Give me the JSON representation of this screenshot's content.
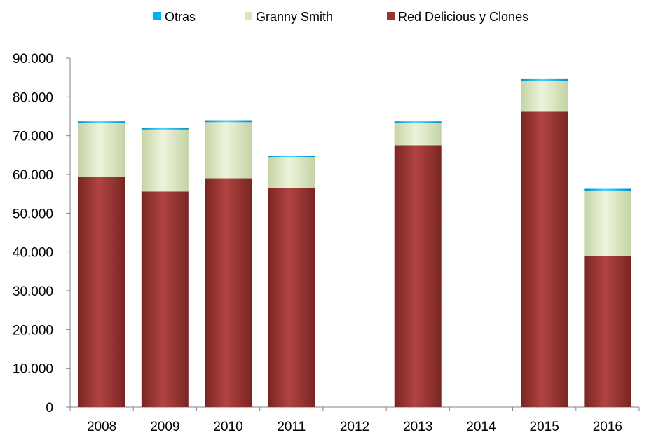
{
  "chart_data": {
    "type": "bar",
    "stacked": true,
    "categories": [
      "2008",
      "2009",
      "2010",
      "2011",
      "2012",
      "2013",
      "2014",
      "2015",
      "2016"
    ],
    "series": [
      {
        "name": "Red Delicious y Clones",
        "color": "#943634",
        "values": [
          59300,
          55600,
          59000,
          56500,
          0,
          67500,
          0,
          76200,
          39000
        ]
      },
      {
        "name": "Granny Smith",
        "color": "#d7e4bd",
        "values": [
          14000,
          16000,
          14500,
          8000,
          0,
          5800,
          0,
          7900,
          16700
        ]
      },
      {
        "name": "Otras",
        "color": "#00b0f0",
        "values": [
          400,
          500,
          500,
          300,
          0,
          400,
          0,
          500,
          600
        ]
      }
    ],
    "legend": {
      "position": "top",
      "order": [
        "Otras",
        "Granny Smith",
        "Red Delicious y Clones"
      ]
    },
    "y_ticks": [
      "0",
      "10.000",
      "20.000",
      "30.000",
      "40.000",
      "50.000",
      "60.000",
      "70.000",
      "80.000",
      "90.000"
    ],
    "ylim": [
      0,
      90000
    ],
    "grid": false
  }
}
